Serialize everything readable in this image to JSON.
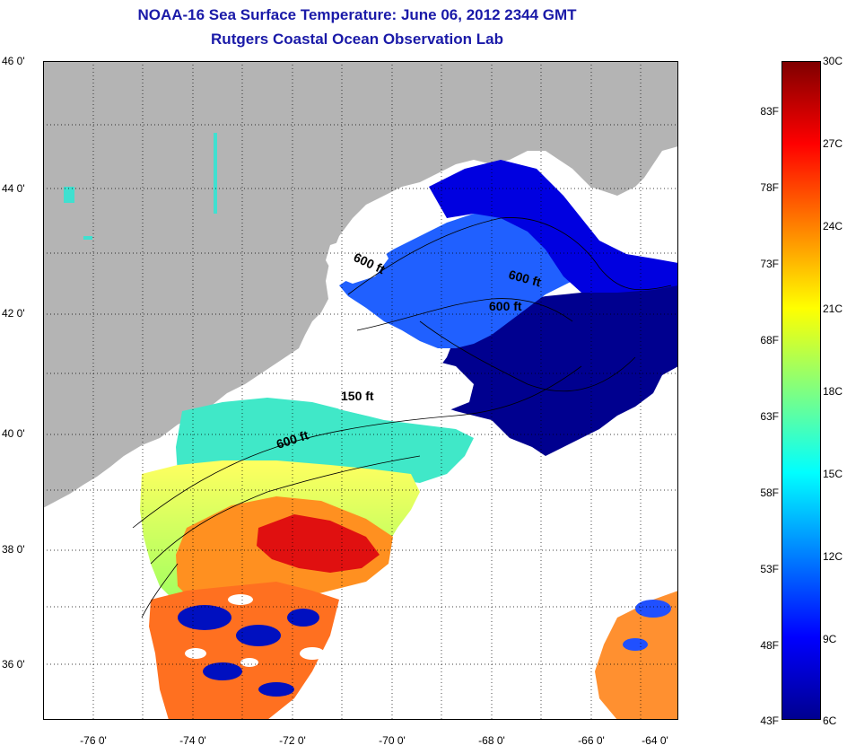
{
  "title_line1": "NOAA-16 Sea Surface Temperature:  June 06, 2012 2344 GMT",
  "title_line2": "Rutgers Coastal Ocean Observation Lab",
  "lat_labels": [
    "46 0'",
    "44 0'",
    "42 0'",
    "40 0'",
    "38 0'",
    "36 0'"
  ],
  "lon_labels": [
    "-76 0'",
    "-74 0'",
    "-72 0'",
    "-70 0'",
    "-68 0'",
    "-66 0'",
    "-64 0'"
  ],
  "colorbar": {
    "fahrenheit_labels": [
      "83F",
      "78F",
      "73F",
      "68F",
      "63F",
      "58F",
      "53F",
      "48F",
      "43F"
    ],
    "celsius_labels": [
      "30C",
      "27C",
      "24C",
      "21C",
      "18C",
      "15C",
      "12C",
      "9C",
      "6C"
    ],
    "colors": [
      "#7f0000",
      "#ff0000",
      "#ff8000",
      "#ffff00",
      "#80ff80",
      "#00ffff",
      "#0080ff",
      "#0000ff",
      "#00008f"
    ]
  },
  "isobaths": [
    {
      "label": "600 ft"
    },
    {
      "label": "600 ft"
    },
    {
      "label": "600 ft"
    },
    {
      "label": "150 ft"
    },
    {
      "label": "600 ft"
    }
  ],
  "colors": {
    "land": "#b4b4b4",
    "cloud": "#ffffff",
    "title": "#1a1aa8"
  }
}
